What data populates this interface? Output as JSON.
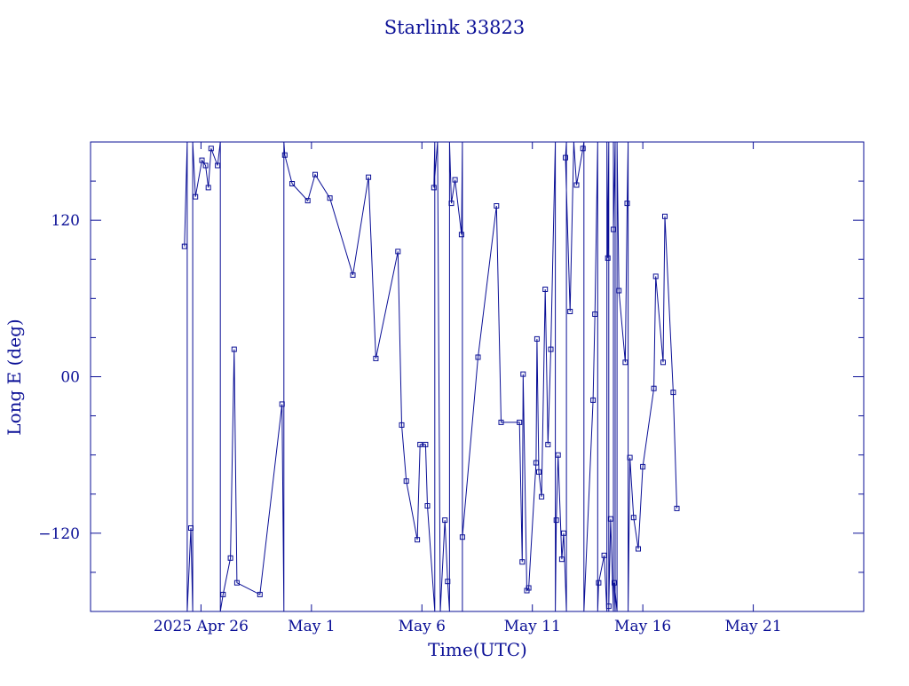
{
  "chart_data": {
    "type": "line",
    "title": "Starlink 33823",
    "xlabel": "Time(UTC)",
    "ylabel": "Long E (deg)",
    "color": "#0a0f96",
    "x_unit": "days",
    "xlim": [
      "2025-04-21T00:00",
      "2025-05-26T00:00"
    ],
    "ylim": [
      -180,
      180
    ],
    "x_tick_labels": [
      {
        "date": "2025-04-26",
        "label": "2025 Apr 26"
      },
      {
        "date": "2025-05-01",
        "label": "May  1"
      },
      {
        "date": "2025-05-06",
        "label": "May  6"
      },
      {
        "date": "2025-05-11",
        "label": "May 11"
      },
      {
        "date": "2025-05-16",
        "label": "May 16"
      },
      {
        "date": "2025-05-21",
        "label": "May 21"
      }
    ],
    "y_tick_labels": [
      {
        "value": 120,
        "label": "120"
      },
      {
        "value": 0,
        "label": "00"
      },
      {
        "value": -120,
        "label": "−120"
      }
    ],
    "grid": false,
    "series": [
      {
        "points": [
          [
            "2025-04-25T06:00",
            100
          ],
          [
            "2025-04-25T09:00",
            180
          ],
          [
            "2025-04-25T09:00",
            -180
          ],
          [
            "2025-04-25T13:00",
            -116
          ],
          [
            "2025-04-25T15:00",
            -180
          ],
          [
            "2025-04-25T15:00",
            180
          ],
          [
            "2025-04-25T18:00",
            138
          ],
          [
            "2025-04-26T01:00",
            166
          ],
          [
            "2025-04-26T05:00",
            162
          ],
          [
            "2025-04-26T08:00",
            145
          ],
          [
            "2025-04-26T11:00",
            175
          ],
          [
            "2025-04-26T18:00",
            162
          ],
          [
            "2025-04-26T21:00",
            180
          ],
          [
            "2025-04-26T21:00",
            -180
          ],
          [
            "2025-04-27T00:00",
            -167
          ],
          [
            "2025-04-27T08:00",
            -139
          ],
          [
            "2025-04-27T12:00",
            21
          ],
          [
            "2025-04-27T15:00",
            -158
          ],
          [
            "2025-04-28T16:00",
            -167
          ],
          [
            "2025-04-29T16:00",
            -21
          ],
          [
            "2025-04-29T18:00",
            -180
          ],
          [
            "2025-04-29T18:00",
            180
          ],
          [
            "2025-04-29T19:00",
            170
          ],
          [
            "2025-04-30T03:00",
            148
          ],
          [
            "2025-04-30T20:00",
            135
          ],
          [
            "2025-05-01T04:00",
            155
          ],
          [
            "2025-05-01T20:00",
            137
          ],
          [
            "2025-05-02T21:00",
            78
          ],
          [
            "2025-05-03T14:00",
            153
          ],
          [
            "2025-05-03T22:00",
            14
          ],
          [
            "2025-05-04T22:00",
            96
          ],
          [
            "2025-05-05T02:00",
            -37
          ],
          [
            "2025-05-05T07:00",
            -80
          ],
          [
            "2025-05-05T19:00",
            -125
          ],
          [
            "2025-05-05T22:00",
            -52
          ],
          [
            "2025-05-06T04:00",
            -52
          ],
          [
            "2025-05-06T06:00",
            -99
          ],
          [
            "2025-05-06T14:00",
            -180
          ],
          [
            "2025-05-06T14:00",
            180
          ],
          [
            "2025-05-06T13:00",
            145
          ],
          [
            "2025-05-06T17:00",
            180
          ],
          [
            "2025-05-06T20:00",
            -180
          ],
          [
            "2025-05-07T01:00",
            -110
          ],
          [
            "2025-05-07T04:00",
            -157
          ],
          [
            "2025-05-07T06:00",
            -180
          ],
          [
            "2025-05-07T06:00",
            180
          ],
          [
            "2025-05-07T08:00",
            133
          ],
          [
            "2025-05-07T12:00",
            151
          ],
          [
            "2025-05-07T19:00",
            109
          ],
          [
            "2025-05-07T20:00",
            180
          ],
          [
            "2025-05-07T20:00",
            -180
          ],
          [
            "2025-05-07T20:00",
            -123
          ],
          [
            "2025-05-08T13:00",
            15
          ],
          [
            "2025-05-09T09:00",
            131
          ],
          [
            "2025-05-09T14:00",
            -35
          ],
          [
            "2025-05-10T10:00",
            -35
          ],
          [
            "2025-05-10T13:00",
            -142
          ],
          [
            "2025-05-10T14:00",
            2
          ],
          [
            "2025-05-10T18:00",
            -164
          ],
          [
            "2025-05-10T20:00",
            -162
          ],
          [
            "2025-05-11T04:00",
            -66
          ],
          [
            "2025-05-11T05:00",
            29
          ],
          [
            "2025-05-11T07:00",
            -73
          ],
          [
            "2025-05-11T10:00",
            -92
          ],
          [
            "2025-05-11T14:00",
            67
          ],
          [
            "2025-05-11T17:00",
            -52
          ],
          [
            "2025-05-11T20:00",
            21
          ],
          [
            "2025-05-12T01:00",
            180
          ],
          [
            "2025-05-12T01:00",
            -180
          ],
          [
            "2025-05-12T02:00",
            -110
          ],
          [
            "2025-05-12T04:00",
            -60
          ],
          [
            "2025-05-12T08:00",
            -140
          ],
          [
            "2025-05-12T10:00",
            -120
          ],
          [
            "2025-05-12T13:00",
            -180
          ],
          [
            "2025-05-12T13:00",
            180
          ],
          [
            "2025-05-12T12:00",
            168
          ],
          [
            "2025-05-12T17:00",
            50
          ],
          [
            "2025-05-12T21:00",
            180
          ],
          [
            "2025-05-13T00:00",
            147
          ],
          [
            "2025-05-13T07:00",
            175
          ],
          [
            "2025-05-13T08:00",
            180
          ],
          [
            "2025-05-13T08:00",
            -180
          ],
          [
            "2025-05-13T18:00",
            -18
          ],
          [
            "2025-05-13T20:00",
            48
          ],
          [
            "2025-05-13T23:00",
            180
          ],
          [
            "2025-05-13T23:00",
            -180
          ],
          [
            "2025-05-14T00:00",
            -158
          ],
          [
            "2025-05-14T06:00",
            -137
          ],
          [
            "2025-05-14T09:00",
            -180
          ],
          [
            "2025-05-14T09:00",
            180
          ],
          [
            "2025-05-14T10:00",
            91
          ],
          [
            "2025-05-14T11:00",
            180
          ],
          [
            "2025-05-14T11:00",
            -180
          ],
          [
            "2025-05-14T11:00",
            -176
          ],
          [
            "2025-05-14T13:00",
            -109
          ],
          [
            "2025-05-14T16:00",
            -180
          ],
          [
            "2025-05-14T16:00",
            180
          ],
          [
            "2025-05-14T16:00",
            113
          ],
          [
            "2025-05-14T18:00",
            180
          ],
          [
            "2025-05-14T18:00",
            -180
          ],
          [
            "2025-05-14T17:00",
            -158
          ],
          [
            "2025-05-14T20:00",
            -180
          ],
          [
            "2025-05-14T20:00",
            180
          ],
          [
            "2025-05-14T22:00",
            66
          ],
          [
            "2025-05-15T05:00",
            11
          ],
          [
            "2025-05-15T07:00",
            133
          ],
          [
            "2025-05-15T08:00",
            180
          ],
          [
            "2025-05-15T08:00",
            -180
          ],
          [
            "2025-05-15T10:00",
            -62
          ],
          [
            "2025-05-15T14:00",
            -108
          ],
          [
            "2025-05-15T19:00",
            -132
          ],
          [
            "2025-05-16T00:00",
            -69
          ],
          [
            "2025-05-16T12:00",
            -9
          ],
          [
            "2025-05-16T14:00",
            77
          ],
          [
            "2025-05-16T22:00",
            11
          ],
          [
            "2025-05-17T00:00",
            123
          ],
          [
            "2025-05-17T09:00",
            -12
          ],
          [
            "2025-05-17T13:00",
            -101
          ]
        ]
      }
    ]
  }
}
